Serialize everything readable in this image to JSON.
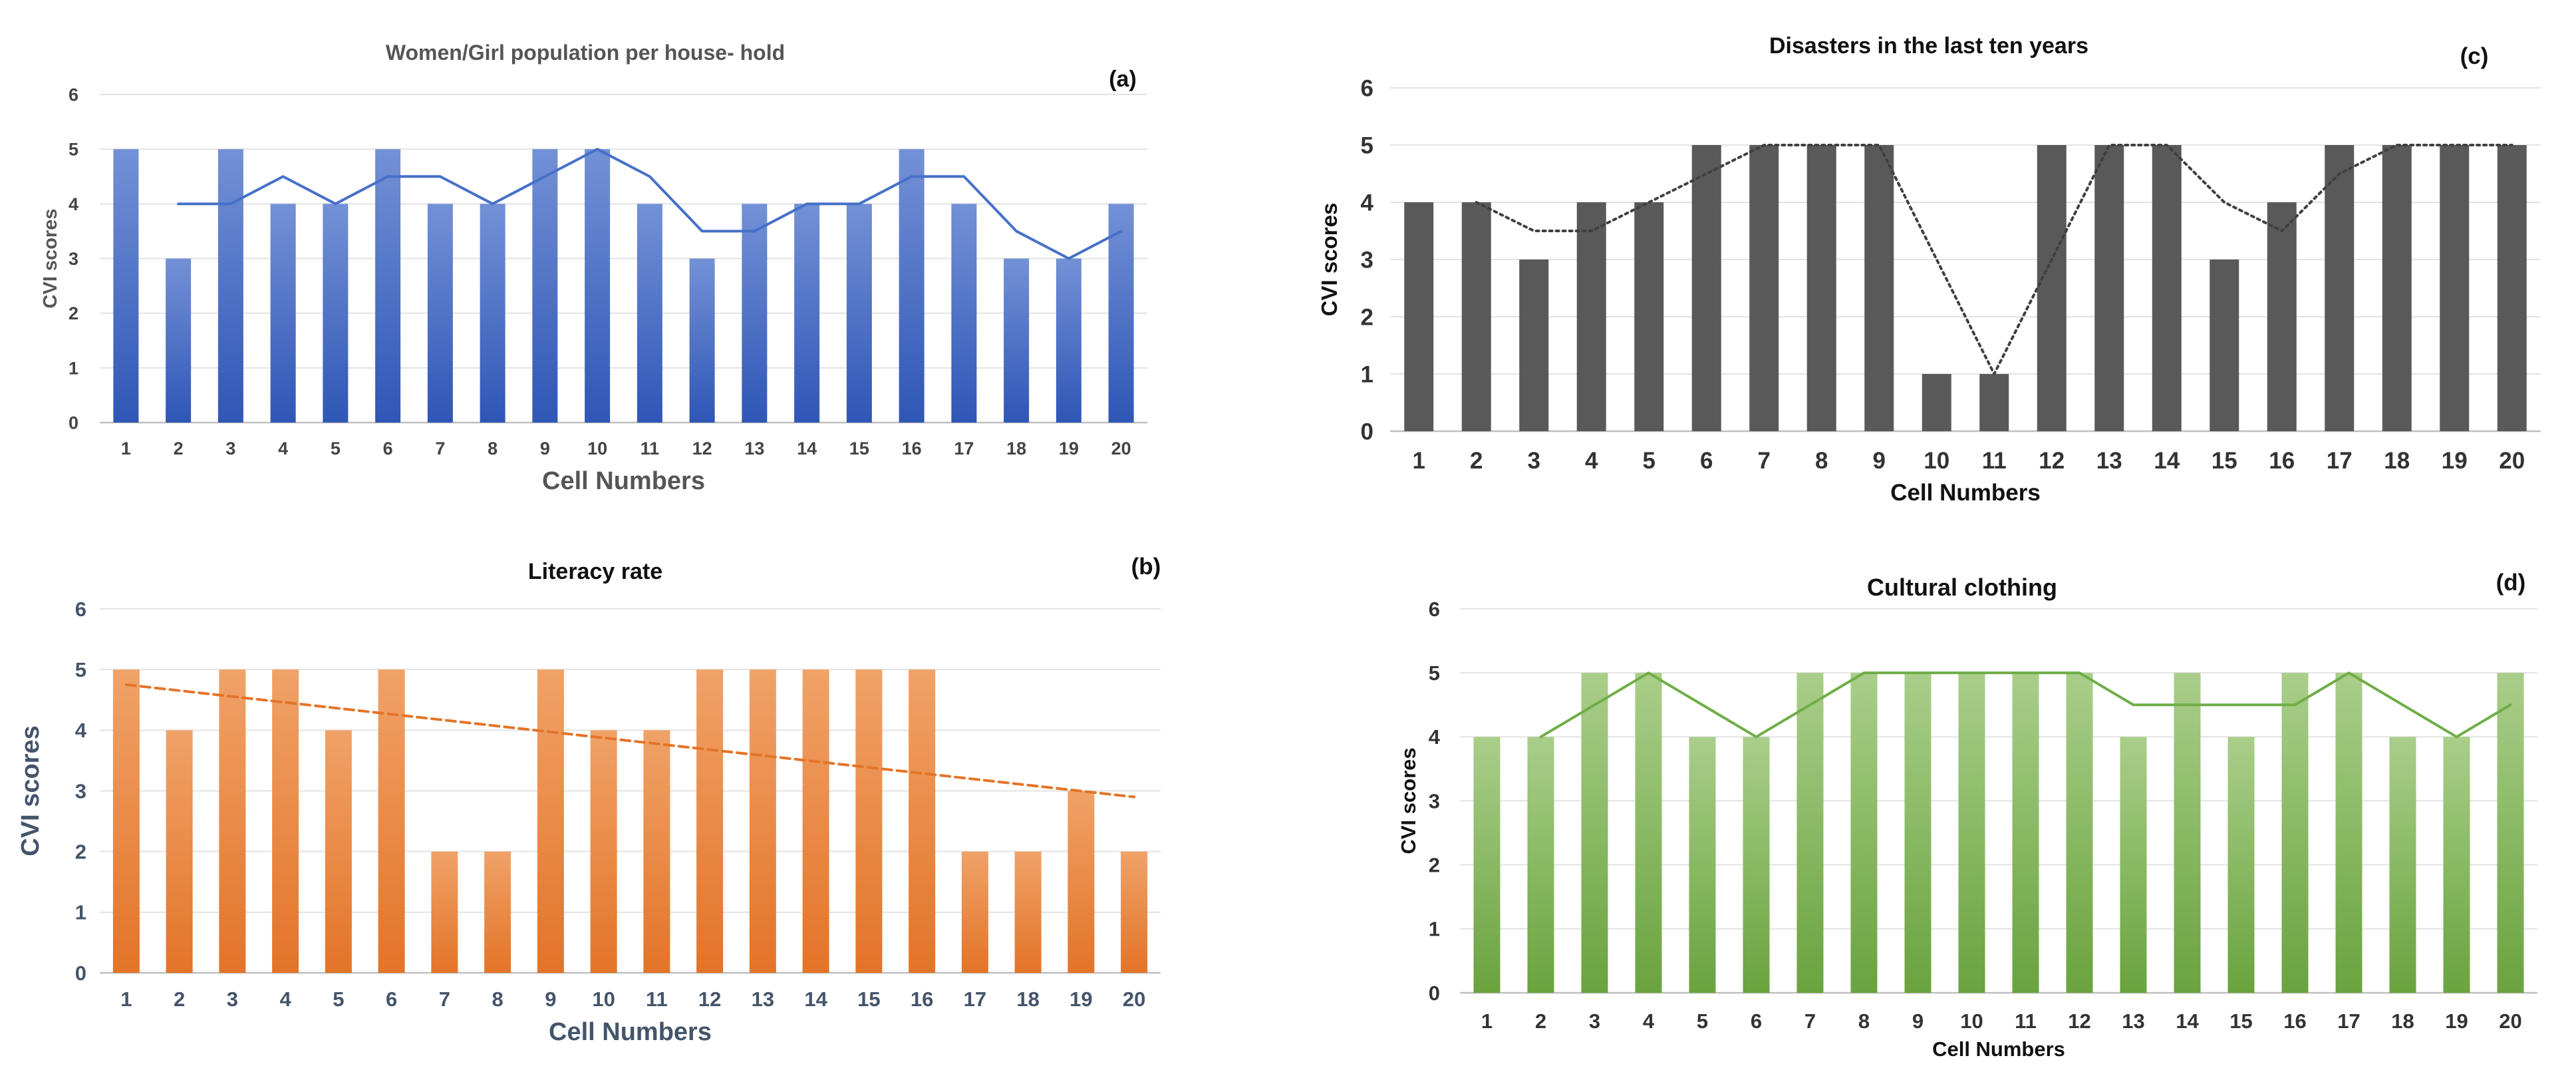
{
  "figure": {
    "description_free": true
  },
  "chart_data": [
    {
      "id": "a",
      "type": "bar",
      "panel_label": "(a)",
      "title": "Women/Girl population per house- hold",
      "xlabel": "Cell  Numbers",
      "ylabel": "CVI scores",
      "ylim": [
        0,
        6
      ],
      "yticks": [
        0,
        1,
        2,
        3,
        4,
        5,
        6
      ],
      "categories": [
        "1",
        "2",
        "3",
        "4",
        "5",
        "6",
        "7",
        "8",
        "9",
        "10",
        "11",
        "12",
        "13",
        "14",
        "15",
        "16",
        "17",
        "18",
        "19",
        "20"
      ],
      "values": [
        5,
        3,
        5,
        4,
        4,
        5,
        4,
        4,
        5,
        5,
        4,
        3,
        4,
        4,
        4,
        5,
        4,
        3,
        3,
        4
      ],
      "trend": {
        "kind": "moving-average",
        "style": "solid",
        "values": [
          null,
          4,
          4,
          4.5,
          4,
          4.5,
          4.5,
          4,
          4.5,
          5,
          4.5,
          3.5,
          3.5,
          4,
          4,
          4.5,
          4.5,
          3.5,
          3,
          3.5
        ]
      },
      "grid": true,
      "colors": {
        "bar_top": "#7391d6",
        "bar_bottom": "#2f56b6",
        "trend": "#4670c8",
        "title": "#555555",
        "ticks": "#444444",
        "label": "#555555"
      }
    },
    {
      "id": "b",
      "type": "bar",
      "panel_label": "(b)",
      "title": "Literacy rate",
      "xlabel": "Cell Numbers",
      "ylabel": "CVI  scores",
      "ylim": [
        0,
        6
      ],
      "yticks": [
        0,
        1,
        2,
        3,
        4,
        5,
        6
      ],
      "categories": [
        "1",
        "2",
        "3",
        "4",
        "5",
        "6",
        "7",
        "8",
        "9",
        "10",
        "11",
        "12",
        "13",
        "14",
        "15",
        "16",
        "17",
        "18",
        "19",
        "20"
      ],
      "values": [
        5,
        4,
        5,
        5,
        4,
        5,
        2,
        2,
        5,
        4,
        4,
        5,
        5,
        5,
        5,
        5,
        2,
        2,
        3,
        2
      ],
      "trend": {
        "kind": "linear",
        "style": "dashed",
        "start": 4.75,
        "end": 2.9
      },
      "grid": true,
      "colors": {
        "bar_top": "#f0a268",
        "bar_bottom": "#e37428",
        "trend": "#e37428",
        "title": "#111111",
        "ticks": "#44546a",
        "label": "#44546a"
      }
    },
    {
      "id": "c",
      "type": "bar",
      "panel_label": "(c)",
      "title": "Disasters in the last ten  years",
      "xlabel": "Cell Numbers",
      "ylabel": "CVI scores",
      "ylim": [
        0,
        6
      ],
      "yticks": [
        0,
        1,
        2,
        3,
        4,
        5,
        6
      ],
      "categories": [
        "1",
        "2",
        "3",
        "4",
        "5",
        "6",
        "7",
        "8",
        "9",
        "10",
        "11",
        "12",
        "13",
        "14",
        "15",
        "16",
        "17",
        "18",
        "19",
        "20"
      ],
      "values": [
        4,
        4,
        3,
        4,
        4,
        5,
        5,
        5,
        5,
        1,
        1,
        5,
        5,
        5,
        3,
        4,
        5,
        5,
        5,
        5
      ],
      "trend": {
        "kind": "moving-average",
        "style": "dotted",
        "values": [
          null,
          4,
          3.5,
          3.5,
          4,
          4.5,
          5,
          5,
          5,
          3,
          1,
          3,
          5,
          5,
          4,
          3.5,
          4.5,
          5,
          5,
          5
        ]
      },
      "grid": true,
      "colors": {
        "bar_top": "#595959",
        "bar_bottom": "#595959",
        "trend": "#404040",
        "title": "#111111",
        "ticks": "#333333",
        "label": "#111111"
      }
    },
    {
      "id": "d",
      "type": "bar",
      "panel_label": "(d)",
      "title": "Cultural clothing",
      "xlabel": "Cell Numbers",
      "ylabel": "CVI scores",
      "ylim": [
        0,
        6
      ],
      "yticks": [
        0,
        1,
        2,
        3,
        4,
        5,
        6
      ],
      "categories": [
        "1",
        "2",
        "3",
        "4",
        "5",
        "6",
        "7",
        "8",
        "9",
        "10",
        "11",
        "12",
        "13",
        "14",
        "15",
        "16",
        "17",
        "18",
        "19",
        "20"
      ],
      "values": [
        4,
        4,
        5,
        5,
        4,
        4,
        5,
        5,
        5,
        5,
        5,
        5,
        4,
        5,
        4,
        5,
        5,
        4,
        4,
        5
      ],
      "trend": {
        "kind": "moving-average",
        "style": "solid",
        "values": [
          null,
          4,
          4.5,
          5,
          4.5,
          4,
          4.5,
          5,
          5,
          5,
          5,
          5,
          4.5,
          4.5,
          4.5,
          4.5,
          5,
          4.5,
          4,
          4.5
        ]
      },
      "grid": true,
      "colors": {
        "bar_top": "#a9ce8a",
        "bar_bottom": "#6aa33e",
        "trend": "#70ad47",
        "title": "#111111",
        "ticks": "#333333",
        "label": "#111111"
      }
    }
  ]
}
